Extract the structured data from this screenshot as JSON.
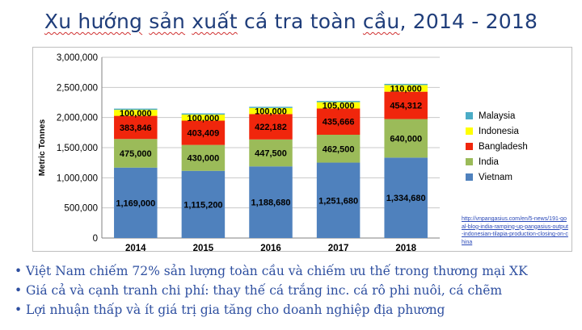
{
  "title_parts": {
    "p1": "Xu hướng",
    "p2": "sản",
    "p3": "xuất",
    "p4": "cá tra toàn",
    "p5": "cầu",
    "p6": ", 2014 - 2018"
  },
  "source_text": "http://vnpangasius.com/en/5-news/191-goal-blog-india-ramping-up-pangasius-output-indonesian-tilapia-production-closing-on-china",
  "bullets": [
    "Việt Nam chiếm 72% sản lượng toàn cầu và chiếm ưu thế trong thương mại XK",
    "Giá cả và cạnh tranh chi phí: thay thế cá trắng inc. cá rô phi nuôi, cá chẽm",
    "Lợi nhuận thấp và ít giá trị gia tăng cho doanh nghiệp địa phương"
  ],
  "chart_data": {
    "type": "bar",
    "stacked": true,
    "categories": [
      "2014",
      "2015",
      "2016",
      "2017",
      "2018"
    ],
    "ylabel": "Metric Tonnes",
    "ylim": [
      0,
      3000000
    ],
    "yticks": [
      0,
      500000,
      1000000,
      1500000,
      2000000,
      2500000,
      3000000
    ],
    "ytick_labels": [
      "0",
      "500,000",
      "1,000,000",
      "1,500,000",
      "2,000,000",
      "2,500,000",
      "3,000,000"
    ],
    "legend_position": "right",
    "series": [
      {
        "name": "Vietnam",
        "color": "#4f81bd",
        "values": [
          1169000,
          1115200,
          1188680,
          1251680,
          1334680
        ],
        "labels": [
          "1,169,000",
          "1,115,200",
          "1,188,680",
          "1,251,680",
          "1,334,680"
        ]
      },
      {
        "name": "India",
        "color": "#9bbb59",
        "values": [
          475000,
          430000,
          447500,
          462500,
          640000
        ],
        "labels": [
          "475,000",
          "430,000",
          "447,500",
          "462,500",
          "640,000"
        ]
      },
      {
        "name": "Bangladesh",
        "color": "#f0260c",
        "values": [
          383846,
          403409,
          422182,
          435666,
          454312
        ],
        "labels": [
          "383,846",
          "403,409",
          "422,182",
          "435,666",
          "454,312"
        ]
      },
      {
        "name": "Indonesia",
        "color": "#ffff00",
        "values": [
          100000,
          100000,
          100000,
          105000,
          110000
        ],
        "labels": [
          "100,000",
          "100,000",
          "100,000",
          "105,000",
          "110,000"
        ]
      },
      {
        "name": "Malaysia",
        "color": "#4bacc6",
        "values": [
          20000,
          20000,
          20000,
          20000,
          20000
        ],
        "labels": [
          "",
          "",
          "",
          "",
          ""
        ]
      }
    ],
    "legend_order": [
      "Malaysia",
      "Indonesia",
      "Bangladesh",
      "India",
      "Vietnam"
    ]
  }
}
